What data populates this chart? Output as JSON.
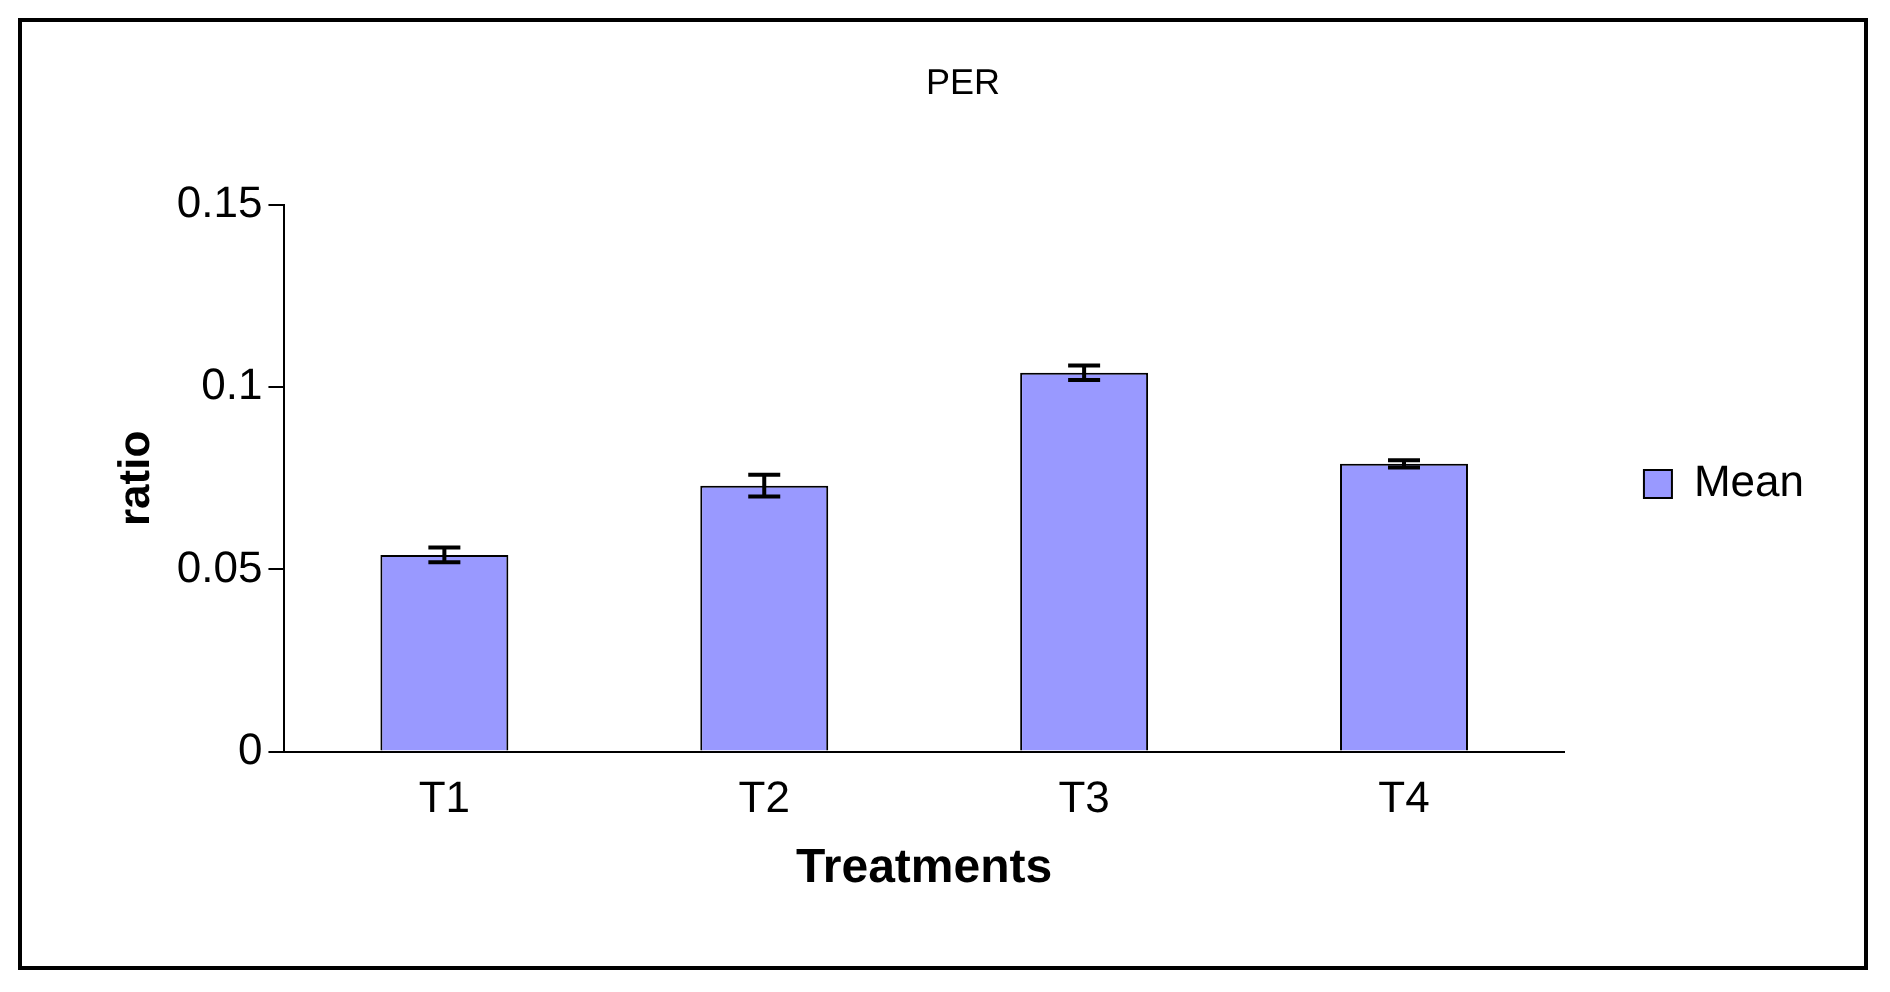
{
  "chart_data": {
    "type": "bar",
    "title": "PER",
    "xlabel": "Treatments",
    "ylabel": "ratio",
    "categories": [
      "T1",
      "T2",
      "T3",
      "T4"
    ],
    "series": [
      {
        "name": "Mean",
        "color": "#9999ff",
        "values": [
          0.054,
          0.073,
          0.104,
          0.079
        ],
        "errors": [
          0.002,
          0.003,
          0.002,
          0.001
        ]
      }
    ],
    "ylim": [
      0,
      0.15
    ],
    "yticks": [
      0,
      0.05,
      0.1,
      0.15
    ],
    "grid": false,
    "legend": "right"
  }
}
